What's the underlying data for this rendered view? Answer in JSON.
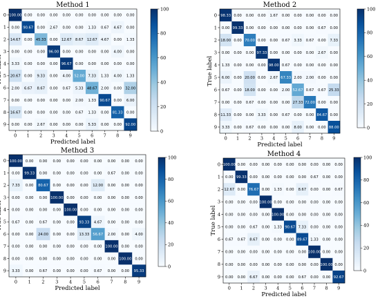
{
  "chart_data": [
    {
      "type": "heatmap",
      "title": "Method 1",
      "xlabel": "Predicted label",
      "ylabel": "True label",
      "x_ticks": [
        "0",
        "1",
        "2",
        "3",
        "4",
        "5",
        "6",
        "7",
        "8",
        "9"
      ],
      "y_ticks": [
        "0",
        "1",
        "2",
        "3",
        "4",
        "5",
        "6",
        "7",
        "8",
        "9"
      ],
      "colorbar": {
        "range": [
          0,
          100
        ],
        "ticks": [
          "0",
          "20",
          "40",
          "60",
          "80",
          "100"
        ]
      },
      "matrix": [
        [
          "100.00",
          "0.00",
          "0.00",
          "0.00",
          "0.00",
          "0.00",
          "0.00",
          "0.00",
          "0.00",
          "0.00"
        ],
        [
          "0.00",
          "90.67",
          "0.00",
          "2.67",
          "0.00",
          "0.00",
          "1.33",
          "0.67",
          "4.67",
          "0.00"
        ],
        [
          "14.67",
          "0.00",
          "45.33",
          "0.00",
          "12.67",
          "8.67",
          "12.67",
          "4.67",
          "0.00",
          "1.33"
        ],
        [
          "0.00",
          "0.00",
          "0.00",
          "96.00",
          "0.00",
          "0.00",
          "0.00",
          "0.00",
          "4.00",
          "0.00"
        ],
        [
          "3.33",
          "0.00",
          "0.00",
          "0.00",
          "96.67",
          "0.00",
          "0.00",
          "0.00",
          "0.00",
          "0.00"
        ],
        [
          "20.67",
          "0.00",
          "9.33",
          "0.00",
          "4.00",
          "52.00",
          "7.33",
          "1.33",
          "4.00",
          "1.33"
        ],
        [
          "2.00",
          "6.67",
          "8.67",
          "0.00",
          "0.67",
          "5.33",
          "48.67",
          "2.00",
          "0.00",
          "32.00"
        ],
        [
          "0.00",
          "0.00",
          "0.00",
          "0.00",
          "0.00",
          "2.00",
          "1.33",
          "90.67",
          "0.00",
          "6.00"
        ],
        [
          "16.67",
          "0.00",
          "0.00",
          "0.00",
          "0.00",
          "0.67",
          "1.33",
          "0.00",
          "81.33",
          "0.00"
        ],
        [
          "0.00",
          "0.00",
          "2.67",
          "0.00",
          "0.00",
          "0.00",
          "5.33",
          "0.00",
          "0.00",
          "92.00"
        ]
      ]
    },
    {
      "type": "heatmap",
      "title": "Method 2",
      "xlabel": "Predicted label",
      "ylabel": "True label",
      "x_ticks": [
        "0",
        "1",
        "2",
        "3",
        "4",
        "5",
        "6",
        "7",
        "8",
        "9"
      ],
      "y_ticks": [
        "0",
        "1",
        "2",
        "3",
        "4",
        "5",
        "6",
        "7",
        "8",
        "9"
      ],
      "colorbar": {
        "range": [
          0,
          100
        ],
        "ticks": [
          "0",
          "20",
          "40",
          "60",
          "80",
          "100"
        ]
      },
      "matrix": [
        [
          "98.33",
          "0.00",
          "0.00",
          "0.00",
          "1.67",
          "0.00",
          "0.00",
          "0.00",
          "0.00",
          "0.00"
        ],
        [
          "0.00",
          "99.33",
          "0.00",
          "0.00",
          "0.00",
          "0.00",
          "0.00",
          "0.00",
          "0.67",
          "0.00"
        ],
        [
          "18.00",
          "0.00",
          "70.00",
          "0.00",
          "0.00",
          "0.67",
          "3.33",
          "0.67",
          "0.00",
          "7.33"
        ],
        [
          "0.00",
          "0.00",
          "0.00",
          "97.33",
          "0.00",
          "0.00",
          "0.00",
          "0.00",
          "2.67",
          "0.00"
        ],
        [
          "1.33",
          "0.00",
          "0.00",
          "0.00",
          "98.00",
          "0.67",
          "0.00",
          "0.00",
          "0.00",
          "0.00"
        ],
        [
          "6.00",
          "0.00",
          "20.00",
          "0.00",
          "2.67",
          "67.33",
          "2.00",
          "2.00",
          "0.00",
          "0.00"
        ],
        [
          "0.67",
          "0.00",
          "18.00",
          "0.00",
          "0.00",
          "2.00",
          "52.67",
          "0.67",
          "0.67",
          "25.33"
        ],
        [
          "0.00",
          "0.00",
          "0.67",
          "0.00",
          "0.00",
          "0.00",
          "27.33",
          "72.00",
          "0.00",
          "0.00"
        ],
        [
          "11.33",
          "0.00",
          "0.00",
          "3.33",
          "0.00",
          "0.67",
          "0.00",
          "0.00",
          "84.67",
          "0.00"
        ],
        [
          "3.33",
          "0.00",
          "0.67",
          "0.00",
          "0.00",
          "0.00",
          "8.00",
          "0.00",
          "0.00",
          "88.00"
        ]
      ]
    },
    {
      "type": "heatmap",
      "title": "Method 3",
      "xlabel": "Predicted label",
      "ylabel": "True label",
      "x_ticks": [
        "0",
        "1",
        "2",
        "3",
        "4",
        "5",
        "6",
        "7",
        "8",
        "9"
      ],
      "y_ticks": [
        "0",
        "1",
        "2",
        "3",
        "4",
        "5",
        "6",
        "7",
        "8",
        "9"
      ],
      "colorbar": {
        "range": [
          0,
          100
        ],
        "ticks": [
          "0",
          "20",
          "40",
          "60",
          "80",
          "100"
        ]
      },
      "matrix": [
        [
          "100.00",
          "0.00",
          "0.00",
          "0.00",
          "0.00",
          "0.00",
          "0.00",
          "0.00",
          "0.00",
          "0.00"
        ],
        [
          "0.00",
          "99.33",
          "0.00",
          "0.00",
          "0.00",
          "0.00",
          "0.00",
          "0.67",
          "0.00",
          "0.00"
        ],
        [
          "7.33",
          "0.00",
          "80.67",
          "0.00",
          "0.00",
          "0.00",
          "12.00",
          "0.00",
          "0.00",
          "0.00"
        ],
        [
          "0.00",
          "0.00",
          "0.00",
          "100.00",
          "0.00",
          "0.00",
          "0.00",
          "0.00",
          "0.00",
          "0.00"
        ],
        [
          "0.00",
          "0.00",
          "0.00",
          "0.00",
          "100.00",
          "0.00",
          "0.00",
          "0.00",
          "0.00",
          "0.00"
        ],
        [
          "0.67",
          "0.00",
          "0.67",
          "0.00",
          "0.00",
          "93.33",
          "4.67",
          "0.00",
          "0.00",
          "0.00"
        ],
        [
          "0.00",
          "0.00",
          "24.00",
          "0.00",
          "0.00",
          "13.33",
          "56.67",
          "2.00",
          "0.00",
          "4.00"
        ],
        [
          "0.00",
          "0.00",
          "0.00",
          "0.00",
          "0.00",
          "0.00",
          "0.00",
          "100.00",
          "0.00",
          "0.00"
        ],
        [
          "0.00",
          "0.00",
          "0.00",
          "0.00",
          "0.00",
          "0.00",
          "0.00",
          "0.00",
          "100.00",
          "0.00"
        ],
        [
          "3.33",
          "0.00",
          "0.67",
          "0.00",
          "0.00",
          "0.00",
          "0.67",
          "0.00",
          "0.00",
          "95.33"
        ]
      ]
    },
    {
      "type": "heatmap",
      "title": "Method 4",
      "xlabel": "Predicted label",
      "ylabel": "True label",
      "x_ticks": [
        "0",
        "1",
        "2",
        "3",
        "4",
        "5",
        "6",
        "7",
        "8",
        "9"
      ],
      "y_ticks": [
        "0",
        "1",
        "2",
        "3",
        "4",
        "5",
        "6",
        "7",
        "8",
        "9"
      ],
      "colorbar": {
        "range": [
          0,
          100
        ],
        "ticks": [
          "0",
          "20",
          "40",
          "60",
          "80",
          "100"
        ]
      },
      "matrix": [
        [
          "100.00",
          "0.00",
          "0.00",
          "0.00",
          "0.00",
          "0.00",
          "0.00",
          "0.00",
          "0.00",
          "0.00"
        ],
        [
          "0.00",
          "99.33",
          "0.00",
          "0.00",
          "0.00",
          "0.00",
          "0.00",
          "0.67",
          "0.00",
          "0.00"
        ],
        [
          "12.67",
          "0.00",
          "76.67",
          "0.00",
          "1.33",
          "0.00",
          "8.67",
          "0.00",
          "0.00",
          "0.67"
        ],
        [
          "0.00",
          "0.00",
          "0.00",
          "100.00",
          "0.00",
          "0.00",
          "0.00",
          "0.00",
          "0.00",
          "0.00"
        ],
        [
          "0.00",
          "0.00",
          "0.00",
          "0.00",
          "100.00",
          "0.00",
          "0.00",
          "0.00",
          "0.00",
          "0.00"
        ],
        [
          "0.00",
          "0.00",
          "0.67",
          "0.00",
          "1.33",
          "90.67",
          "7.33",
          "0.00",
          "0.00",
          "0.00"
        ],
        [
          "0.67",
          "0.67",
          "8.67",
          "0.00",
          "0.00",
          "0.00",
          "89.67",
          "1.33",
          "0.00",
          "0.00"
        ],
        [
          "0.00",
          "0.00",
          "0.00",
          "0.00",
          "0.00",
          "0.00",
          "0.00",
          "100.00",
          "0.00",
          "0.00"
        ],
        [
          "0.00",
          "0.00",
          "0.00",
          "0.00",
          "0.00",
          "0.00",
          "0.00",
          "0.00",
          "100.00",
          "0.00"
        ],
        [
          "0.00",
          "0.00",
          "6.67",
          "0.00",
          "0.00",
          "0.00",
          "0.67",
          "0.00",
          "0.00",
          "92.67"
        ]
      ]
    }
  ]
}
